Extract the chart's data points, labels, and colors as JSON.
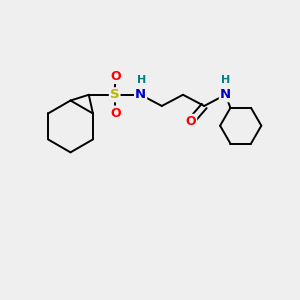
{
  "background_color": "#efefef",
  "bond_color": "#000000",
  "atom_colors": {
    "S": "#b8b800",
    "O": "#ff0000",
    "N": "#0000cc",
    "H": "#008080",
    "C": "#000000"
  },
  "figsize": [
    3.0,
    3.0
  ],
  "dpi": 100,
  "xlim": [
    0,
    10
  ],
  "ylim": [
    0,
    10
  ]
}
